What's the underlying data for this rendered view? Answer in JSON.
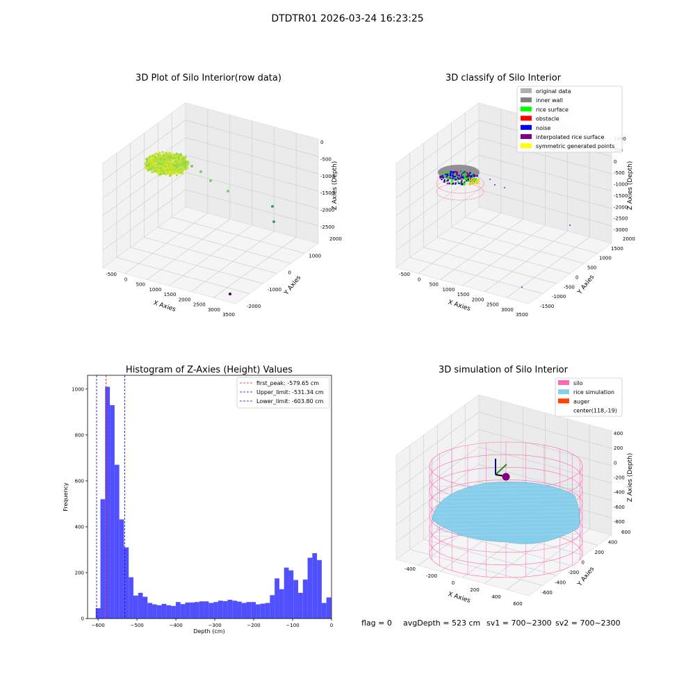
{
  "suptitle": "DTDTR01 2026-03-24 16:23:25",
  "footer": {
    "flag": "flag = 0",
    "avg_depth": "avgDepth = 523 cm",
    "sv1": "sv1 = 700~2300",
    "sv2": "sv2 = 700~2300"
  },
  "colors": {
    "histogram_bar": "#5050ff",
    "first_peak": "#ff0000",
    "limits": "#0000cc",
    "silo": "#ff69b4",
    "rice_simulation": "#87ceeb",
    "auger": "#ff4500",
    "original_data": "#b0b0b0",
    "inner_wall": "#808080",
    "rice_surface": "#00ff00",
    "obstacle": "#ff0000",
    "noise": "#0000ff",
    "interpolated_rice_surface": "#800080",
    "symmetric_generated_points": "#ffff00"
  },
  "chart_data": [
    {
      "type": "scatter",
      "title": "3D Plot of Silo Interior(row data)",
      "xlabel": "X Axies",
      "ylabel": "Y Axies",
      "zlabel": "Z Axies (Depth)",
      "x_ticks": [
        "-500",
        "0",
        "500",
        "1000",
        "1500",
        "2000",
        "2500",
        "3000",
        "3500"
      ],
      "y_ticks": [
        "-2000",
        "-1000",
        "0",
        "1000",
        "2000"
      ],
      "z_ticks": [
        "0",
        "-500",
        "-1000",
        "-1500",
        "-2000",
        "-2500"
      ],
      "grid": true
    },
    {
      "type": "scatter",
      "title": "3D classify of Silo Interior",
      "xlabel": "X Axies",
      "ylabel": "Y Axies",
      "zlabel": "Z Axies (Depth)",
      "x_ticks": [
        "-500",
        "0",
        "500",
        "1000",
        "1500",
        "2000",
        "2500",
        "3000",
        "3500"
      ],
      "y_ticks": [
        "-1500",
        "-1000",
        "-500",
        "0",
        "500",
        "1000",
        "1500",
        "2000"
      ],
      "z_ticks": [
        "1000",
        "500",
        "0",
        "-500",
        "-1000",
        "-1500",
        "-2000",
        "-2500",
        "-3000"
      ],
      "legend": [
        "original data",
        "inner wall",
        "rice surface",
        "obstacle",
        "noise",
        "interpolated rice surface",
        "symmetric generated points"
      ],
      "legend_position": "top-right",
      "grid": true
    },
    {
      "type": "bar",
      "title": "Histogram of Z-Axies (Height) Values",
      "xlabel": "Depth (cm)",
      "ylabel": "Frequency",
      "xlim": [
        -627,
        0
      ],
      "ylim": [
        0,
        1060
      ],
      "x_ticks": [
        -600,
        -500,
        -400,
        -300,
        -200,
        -100,
        0
      ],
      "y_ticks": [
        0,
        200,
        400,
        600,
        800,
        1000
      ],
      "bin_start": -606,
      "bin_width": 12.1,
      "values": [
        45,
        520,
        1010,
        930,
        670,
        432,
        310,
        180,
        100,
        112,
        95,
        68,
        62,
        58,
        64,
        58,
        55,
        72,
        63,
        70,
        70,
        72,
        75,
        75,
        68,
        72,
        78,
        76,
        82,
        78,
        74,
        68,
        72,
        72,
        62,
        65,
        68,
        102,
        175,
        128,
        222,
        210,
        168,
        112,
        170,
        265,
        285,
        255,
        68,
        92
      ],
      "vlines": [
        {
          "label": "first_peak: -579.65 cm",
          "x": -579.65,
          "color": "#ff0000"
        },
        {
          "label": "Upper_limit: -531.34 cm",
          "x": -531.34,
          "color": "#0000cc"
        },
        {
          "label": "Lower_limit: -603.80 cm",
          "x": -603.8,
          "color": "#0000cc"
        }
      ],
      "legend_position": "top-right"
    },
    {
      "type": "scatter",
      "title": "3D simulation of Silo Interior",
      "xlabel": "X Axies",
      "ylabel": "Y Axies",
      "zlabel": "Z Axies (Depth)",
      "x_ticks": [
        "-400",
        "-200",
        "0",
        "200",
        "400",
        "600"
      ],
      "y_ticks": [
        "-600",
        "-400",
        "-200",
        "0",
        "200",
        "400",
        "600"
      ],
      "z_ticks": [
        "400",
        "200",
        "0",
        "-200",
        "-400",
        "-600",
        "-800"
      ],
      "legend": [
        "silo",
        "rice simulation",
        "auger",
        "center(118,-19)"
      ],
      "legend_position": "top-right",
      "grid": true
    }
  ]
}
